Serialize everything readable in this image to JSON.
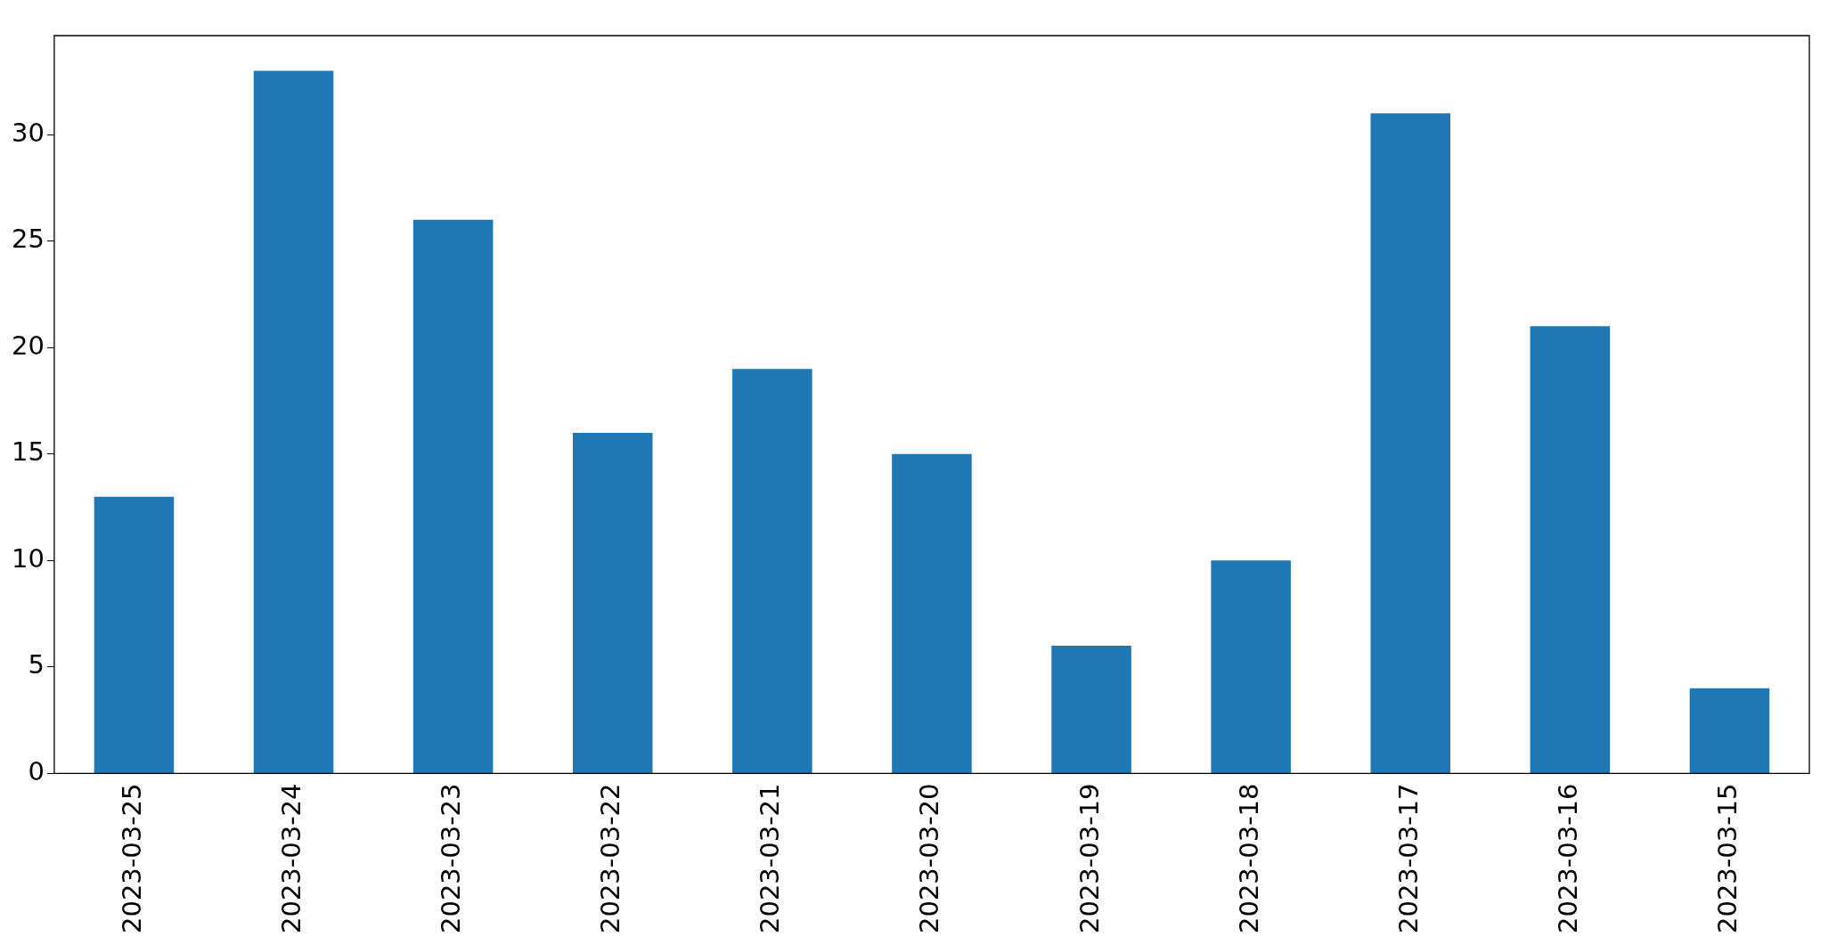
{
  "chart_data": {
    "type": "bar",
    "categories": [
      "2023-03-25",
      "2023-03-24",
      "2023-03-23",
      "2023-03-22",
      "2023-03-21",
      "2023-03-20",
      "2023-03-19",
      "2023-03-18",
      "2023-03-17",
      "2023-03-16",
      "2023-03-15"
    ],
    "values": [
      13,
      33,
      26,
      16,
      19,
      15,
      6,
      10,
      31,
      21,
      4
    ],
    "color": "#1f77b4",
    "ylim": [
      0,
      34.65
    ],
    "yticks": [
      0,
      5,
      10,
      15,
      20,
      25,
      30
    ],
    "grid": false,
    "legend": false
  }
}
